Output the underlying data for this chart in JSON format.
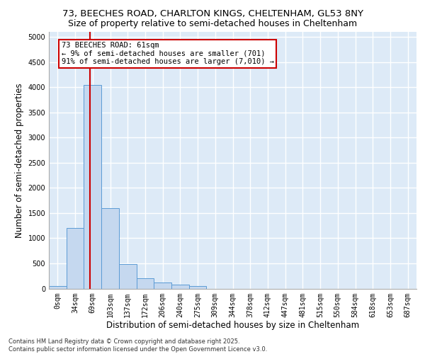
{
  "title_line1": "73, BEECHES ROAD, CHARLTON KINGS, CHELTENHAM, GL53 8NY",
  "title_line2": "Size of property relative to semi-detached houses in Cheltenham",
  "xlabel": "Distribution of semi-detached houses by size in Cheltenham",
  "ylabel": "Number of semi-detached properties",
  "bar_labels": [
    "0sqm",
    "34sqm",
    "69sqm",
    "103sqm",
    "137sqm",
    "172sqm",
    "206sqm",
    "240sqm",
    "275sqm",
    "309sqm",
    "344sqm",
    "378sqm",
    "412sqm",
    "447sqm",
    "481sqm",
    "515sqm",
    "550sqm",
    "584sqm",
    "618sqm",
    "653sqm",
    "687sqm"
  ],
  "bar_values": [
    50,
    1200,
    4050,
    1600,
    480,
    200,
    120,
    80,
    50,
    0,
    0,
    0,
    0,
    0,
    0,
    0,
    0,
    0,
    0,
    0,
    0
  ],
  "bar_color": "#c5d8ef",
  "bar_edge_color": "#5b9bd5",
  "background_color": "#ddeaf7",
  "grid_color": "#ffffff",
  "annotation_text": "73 BEECHES ROAD: 61sqm\n← 9% of semi-detached houses are smaller (701)\n91% of semi-detached houses are larger (7,010) →",
  "vline_x": 1.85,
  "vline_color": "#cc0000",
  "annotation_box_color": "#cc0000",
  "ylim": [
    0,
    5100
  ],
  "yticks": [
    0,
    500,
    1000,
    1500,
    2000,
    2500,
    3000,
    3500,
    4000,
    4500,
    5000
  ],
  "footer_text": "Contains HM Land Registry data © Crown copyright and database right 2025.\nContains public sector information licensed under the Open Government Licence v3.0.",
  "title_fontsize": 9.5,
  "subtitle_fontsize": 9,
  "tick_fontsize": 7,
  "label_fontsize": 8.5
}
